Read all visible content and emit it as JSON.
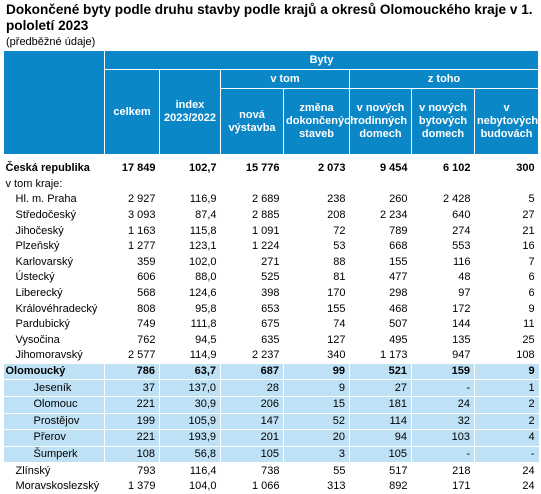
{
  "title": "Dokončené byty podle druhu stavby podle krajů a okresů Olomouckého kraje v 1. pololetí 2023",
  "subtitle": "(předběžné údaje)",
  "header": {
    "group": "Byty",
    "celkem": "celkem",
    "index": "index 2023/2022",
    "v_tom": "v tom",
    "z_toho": "z toho",
    "nova_vystavba": "nová výstavba",
    "zmena_dokoncenych": "změna dokončených staveb",
    "v_rodinnych": "v nových rodinných domech",
    "v_bytovych": "v nových bytových domech",
    "v_nebytovych": "v nebytových budovách"
  },
  "rows": [
    {
      "name": "Česká republika",
      "celkem": "17 849",
      "index": "102,7",
      "nova": "15 776",
      "zmena": "2 073",
      "rodinne": "9 454",
      "bytove": "6 102",
      "nebytove": "300"
    },
    {
      "name": "v tom kraje:",
      "celkem": "",
      "index": "",
      "nova": "",
      "zmena": "",
      "rodinne": "",
      "bytove": "",
      "nebytove": ""
    },
    {
      "name": "Hl. m. Praha",
      "celkem": "2 927",
      "index": "116,9",
      "nova": "2 689",
      "zmena": "238",
      "rodinne": "260",
      "bytove": "2 428",
      "nebytove": "5"
    },
    {
      "name": "Středočeský",
      "celkem": "3 093",
      "index": "87,4",
      "nova": "2 885",
      "zmena": "208",
      "rodinne": "2 234",
      "bytove": "640",
      "nebytove": "27"
    },
    {
      "name": "Jihočeský",
      "celkem": "1 163",
      "index": "115,8",
      "nova": "1 091",
      "zmena": "72",
      "rodinne": "789",
      "bytove": "274",
      "nebytove": "21"
    },
    {
      "name": "Plzeňský",
      "celkem": "1 277",
      "index": "123,1",
      "nova": "1 224",
      "zmena": "53",
      "rodinne": "668",
      "bytove": "553",
      "nebytove": "16"
    },
    {
      "name": "Karlovarský",
      "celkem": "359",
      "index": "102,0",
      "nova": "271",
      "zmena": "88",
      "rodinne": "155",
      "bytove": "116",
      "nebytove": "7"
    },
    {
      "name": "Ústecký",
      "celkem": "606",
      "index": "88,0",
      "nova": "525",
      "zmena": "81",
      "rodinne": "477",
      "bytove": "48",
      "nebytove": "6"
    },
    {
      "name": "Liberecký",
      "celkem": "568",
      "index": "124,6",
      "nova": "398",
      "zmena": "170",
      "rodinne": "298",
      "bytove": "97",
      "nebytove": "6"
    },
    {
      "name": "Královéhradecký",
      "celkem": "808",
      "index": "95,8",
      "nova": "653",
      "zmena": "155",
      "rodinne": "468",
      "bytove": "172",
      "nebytove": "9"
    },
    {
      "name": "Pardubický",
      "celkem": "749",
      "index": "111,8",
      "nova": "675",
      "zmena": "74",
      "rodinne": "507",
      "bytove": "144",
      "nebytove": "11"
    },
    {
      "name": "Vysočina",
      "celkem": "762",
      "index": "94,5",
      "nova": "635",
      "zmena": "127",
      "rodinne": "495",
      "bytove": "135",
      "nebytove": "25"
    },
    {
      "name": "Jihomoravský",
      "celkem": "2 577",
      "index": "114,9",
      "nova": "2 237",
      "zmena": "340",
      "rodinne": "1 173",
      "bytove": "947",
      "nebytove": "108"
    },
    {
      "name": "Olomoucký",
      "celkem": "786",
      "index": "63,7",
      "nova": "687",
      "zmena": "99",
      "rodinne": "521",
      "bytove": "159",
      "nebytove": "9"
    },
    {
      "name": "Jeseník",
      "celkem": "37",
      "index": "137,0",
      "nova": "28",
      "zmena": "9",
      "rodinne": "27",
      "bytove": "-",
      "nebytove": "1"
    },
    {
      "name": "Olomouc",
      "celkem": "221",
      "index": "30,9",
      "nova": "206",
      "zmena": "15",
      "rodinne": "181",
      "bytove": "24",
      "nebytove": "2"
    },
    {
      "name": "Prostějov",
      "celkem": "199",
      "index": "105,9",
      "nova": "147",
      "zmena": "52",
      "rodinne": "114",
      "bytove": "32",
      "nebytove": "2"
    },
    {
      "name": "Přerov",
      "celkem": "221",
      "index": "193,9",
      "nova": "201",
      "zmena": "20",
      "rodinne": "94",
      "bytove": "103",
      "nebytove": "4"
    },
    {
      "name": "Šumperk",
      "celkem": "108",
      "index": "56,8",
      "nova": "105",
      "zmena": "3",
      "rodinne": "105",
      "bytove": "-",
      "nebytove": "-"
    },
    {
      "name": "Zlínský",
      "celkem": "793",
      "index": "116,4",
      "nova": "738",
      "zmena": "55",
      "rodinne": "517",
      "bytove": "218",
      "nebytove": "24"
    },
    {
      "name": "Moravskoslezský",
      "celkem": "1 379",
      "index": "104,0",
      "nova": "1 066",
      "zmena": "313",
      "rodinne": "892",
      "bytove": "171",
      "nebytove": "24"
    }
  ],
  "colors": {
    "header_bg": "#0b87c8",
    "highlight_bg": "#bfe1f5"
  }
}
